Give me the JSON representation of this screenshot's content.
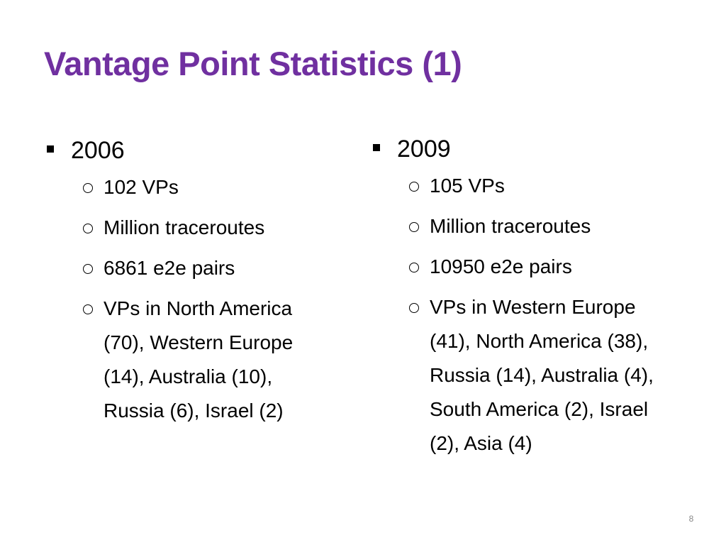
{
  "title": "Vantage Point Statistics (1)",
  "columns": [
    {
      "heading": "2006",
      "items": [
        "102 VPs",
        "Million traceroutes",
        "6861 e2e pairs",
        "VPs in North America (70), Western Europe (14), Australia (10), Russia (6), Israel (2)"
      ]
    },
    {
      "heading": "2009",
      "items": [
        "105 VPs",
        "Million traceroutes",
        "10950 e2e pairs",
        "VPs in Western Europe (41), North America (38), Russia (14), Australia (4), South America (2), Israel (2), Asia (4)"
      ]
    }
  ],
  "page_number": "8"
}
